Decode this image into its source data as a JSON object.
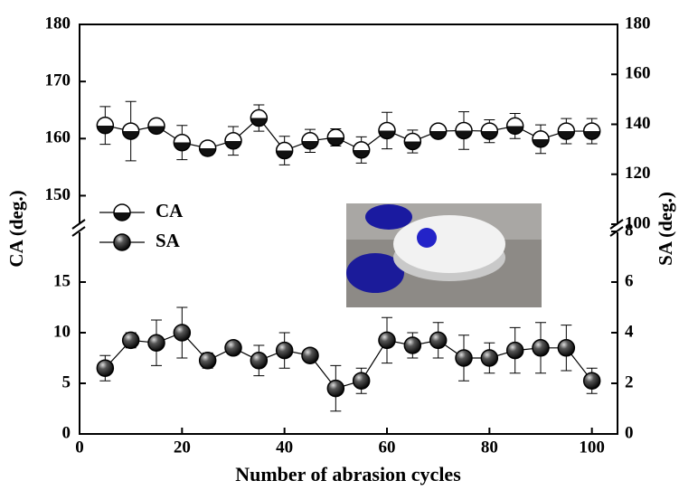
{
  "chart_data": {
    "type": "line",
    "xlabel": "Number of abrasion cycles",
    "ylabel": "CA (deg.)",
    "y2label": "SA (deg.)",
    "x": [
      5,
      10,
      15,
      20,
      25,
      30,
      35,
      40,
      45,
      50,
      55,
      60,
      65,
      70,
      75,
      80,
      85,
      90,
      95,
      100
    ],
    "xlim": [
      0,
      105
    ],
    "xticks": [
      0,
      20,
      40,
      60,
      80,
      100
    ],
    "ylim": [
      0,
      180
    ],
    "ybreak": [
      20,
      145
    ],
    "yticks": [
      0,
      5,
      10,
      15,
      150,
      160,
      170,
      180
    ],
    "y2lim": [
      0,
      180
    ],
    "y2break": [
      8,
      100
    ],
    "y2ticks": [
      0,
      2,
      4,
      6,
      8,
      100,
      120,
      140,
      160,
      180
    ],
    "legend": "upper left",
    "series": [
      {
        "name": "CA",
        "color": "#000000",
        "marker": "half-filled",
        "values": [
          162.3,
          161.3,
          162.2,
          159.3,
          158.3,
          159.6,
          163.6,
          157.9,
          159.6,
          160.2,
          158.0,
          161.4,
          159.5,
          161.3,
          161.4,
          161.3,
          162.2,
          159.9,
          161.3,
          161.3
        ],
        "errors": [
          3.3,
          5.2,
          1.0,
          3.0,
          1.2,
          2.5,
          2.3,
          2.5,
          2.0,
          1.5,
          2.3,
          3.2,
          2.0,
          1.0,
          3.3,
          2.0,
          2.2,
          2.5,
          2.2,
          2.2
        ]
      },
      {
        "name": "SA",
        "color": "#000000",
        "marker": "filled",
        "axis": "y2",
        "values": [
          2.6,
          3.7,
          3.6,
          4.0,
          2.9,
          3.4,
          2.9,
          3.3,
          3.1,
          1.8,
          2.1,
          3.7,
          3.5,
          3.7,
          3.0,
          3.0,
          3.3,
          3.4,
          3.4,
          2.1
        ],
        "errors": [
          0.5,
          0.3,
          0.9,
          1.0,
          0.3,
          0.2,
          0.6,
          0.7,
          0.2,
          0.9,
          0.5,
          0.9,
          0.5,
          0.7,
          0.9,
          0.6,
          0.9,
          1.0,
          0.9,
          0.5
        ]
      }
    ]
  }
}
